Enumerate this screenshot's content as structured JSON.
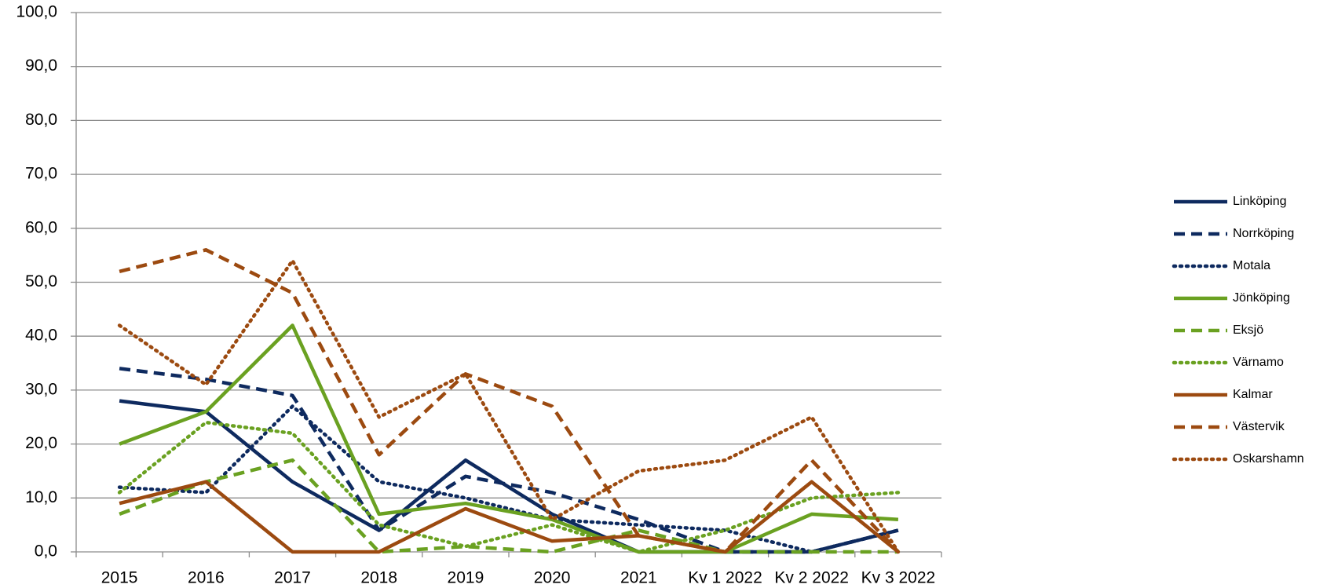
{
  "chart_data": {
    "type": "line",
    "categories": [
      "2015",
      "2016",
      "2017",
      "2018",
      "2019",
      "2020",
      "2021",
      "Kv 1 2022",
      "Kv 2 2022",
      "Kv 3 2022"
    ],
    "series": [
      {
        "name": "Linköping",
        "color": "#0e2a5f",
        "dash": "solid",
        "values": [
          28,
          26,
          13,
          4,
          17,
          7,
          0,
          0,
          0,
          4
        ]
      },
      {
        "name": "Norrköping",
        "color": "#0e2a5f",
        "dash": "dashed",
        "values": [
          34,
          32,
          29,
          4,
          14,
          11,
          6,
          0,
          0,
          4
        ]
      },
      {
        "name": "Motala",
        "color": "#0e2a5f",
        "dash": "dotted",
        "values": [
          12,
          11,
          27,
          13,
          10,
          6,
          5,
          4,
          0,
          4
        ]
      },
      {
        "name": "Jönköping",
        "color": "#6aa121",
        "dash": "solid",
        "values": [
          20,
          26,
          42,
          7,
          9,
          6,
          0,
          0,
          7,
          6
        ]
      },
      {
        "name": "Eksjö",
        "color": "#6aa121",
        "dash": "dashed",
        "values": [
          7,
          13,
          17,
          0,
          1,
          0,
          4,
          0,
          0,
          0
        ]
      },
      {
        "name": "Värnamo",
        "color": "#6aa121",
        "dash": "dotted",
        "values": [
          11,
          24,
          22,
          5,
          1,
          5,
          0,
          4,
          10,
          11
        ]
      },
      {
        "name": "Kalmar",
        "color": "#9c4a10",
        "dash": "solid",
        "values": [
          9,
          13,
          0,
          0,
          8,
          2,
          3,
          0,
          13,
          0
        ]
      },
      {
        "name": "Västervik",
        "color": "#9c4a10",
        "dash": "dashed",
        "values": [
          52,
          56,
          48,
          18,
          33,
          27,
          3,
          0,
          17,
          0
        ]
      },
      {
        "name": "Oskarshamn",
        "color": "#9c4a10",
        "dash": "dotted",
        "values": [
          42,
          31,
          54,
          25,
          33,
          6,
          15,
          17,
          25,
          0
        ]
      }
    ],
    "ylim": [
      0,
      100
    ],
    "yticks": [
      {
        "value": 0,
        "label": "0,0"
      },
      {
        "value": 10,
        "label": "10,0"
      },
      {
        "value": 20,
        "label": "20,0"
      },
      {
        "value": 30,
        "label": "30,0"
      },
      {
        "value": 40,
        "label": "40,0"
      },
      {
        "value": 50,
        "label": "50,0"
      },
      {
        "value": 60,
        "label": "60,0"
      },
      {
        "value": 70,
        "label": "70,0"
      },
      {
        "value": 80,
        "label": "80,0"
      },
      {
        "value": 90,
        "label": "90,0"
      },
      {
        "value": 100,
        "label": "100,0"
      }
    ],
    "grid": true,
    "legend": "right"
  }
}
